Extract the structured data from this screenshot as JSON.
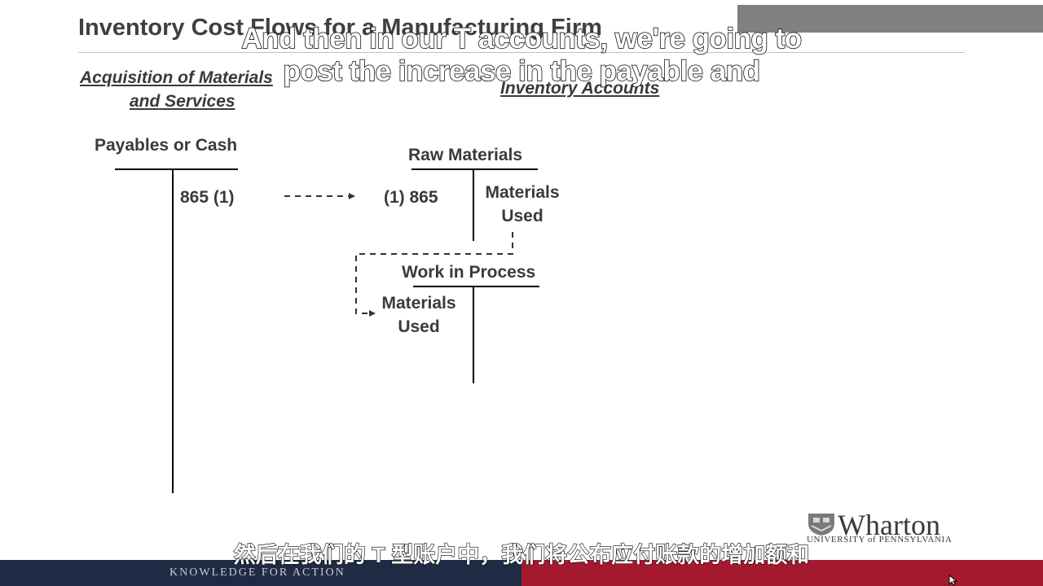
{
  "slide": {
    "title": "Inventory Cost Flows for a Manufacturing Firm",
    "acquisition_heading_line1": "Acquisition of Materials",
    "acquisition_heading_line2": "and Services",
    "inventory_heading": "Inventory Accounts"
  },
  "accounts": {
    "payables": {
      "name": "Payables or Cash",
      "credit_entry": "865  (1)"
    },
    "raw_materials": {
      "name": "Raw Materials",
      "debit_entry": "(1)  865",
      "credit_label_line1": "Materials",
      "credit_label_line2": "Used"
    },
    "work_in_process": {
      "name": "Work in Process",
      "debit_label_line1": "Materials",
      "debit_label_line2": "Used"
    }
  },
  "subtitles": {
    "english_line1": "And then in our T accounts, we're going to",
    "english_line2": "post the increase in the payable and",
    "chinese": "然后在我们的 T 型账户中，我们将公布应付账款的增加额和"
  },
  "branding": {
    "footer_tagline": "KNOWLEDGE FOR ACTION",
    "logo_name": "Wharton",
    "logo_subtitle": "UNIVERSITY of PENNSYLVANIA",
    "colors": {
      "navy": "#1f2a44",
      "red": "#a5192e",
      "gray_bar": "#808080"
    }
  }
}
